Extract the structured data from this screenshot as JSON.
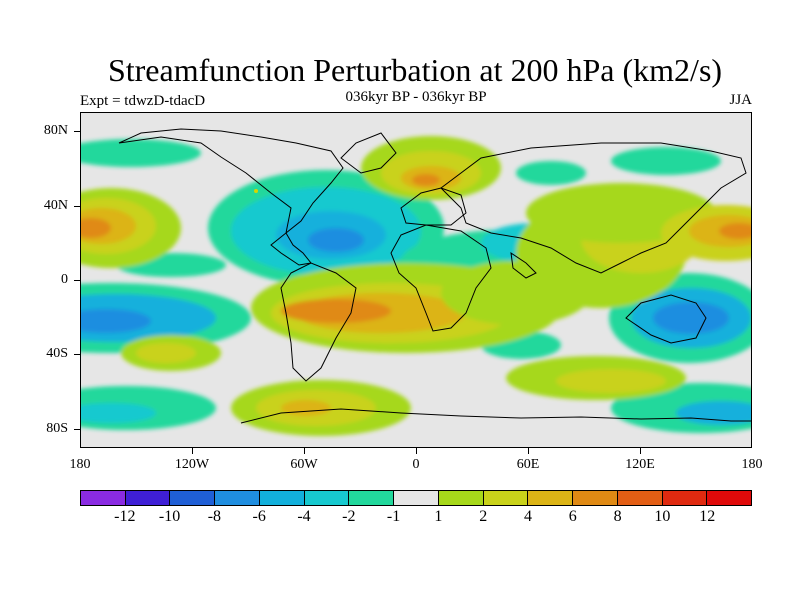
{
  "title": "Streamfunction Perturbation at 200 hPa (km2/s)",
  "subtitle": "036kyr BP - 036kyr BP",
  "experiment": "Expt = tdwzD-tdacD",
  "season": "JJA",
  "lat_labels": [
    "80N",
    "40N",
    "0",
    "40S",
    "80S"
  ],
  "lon_labels": [
    "180",
    "120W",
    "60W",
    "0",
    "60E",
    "120E",
    "180"
  ],
  "colorbar": {
    "labels": [
      "-12",
      "-10",
      "-8",
      "-6",
      "-4",
      "-2",
      "-1",
      "1",
      "2",
      "4",
      "6",
      "8",
      "10",
      "12"
    ],
    "colors": [
      "#8a2be2",
      "#3f1fd6",
      "#1f5fd6",
      "#1f8ee0",
      "#12b0dc",
      "#17c9cf",
      "#22d89c",
      "#e6e6e6",
      "#a6d81a",
      "#c9d21a",
      "#dcb416",
      "#e08a14",
      "#e35e14",
      "#e02a10",
      "#e00a0a"
    ]
  }
}
